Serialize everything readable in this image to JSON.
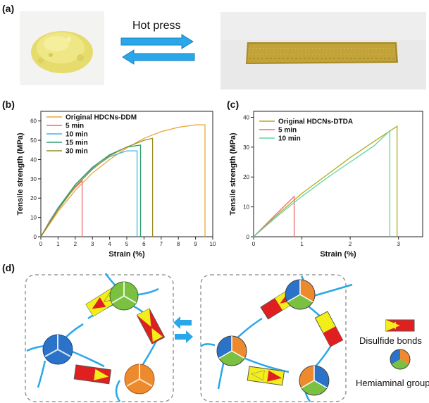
{
  "panel_labels": {
    "a": "(a)",
    "b": "(b)",
    "c": "(c)",
    "d": "(d)"
  },
  "panel_a": {
    "process_label": "Hot press",
    "powder_color": "#e8e07a",
    "bar_color": "#b89a2e",
    "arrow_color": "#2aa7e8"
  },
  "panel_d": {
    "legend_disulfide": "Disulfide bonds",
    "legend_hemiaminal": "Hemiaminal group",
    "colors": {
      "green": "#7ac142",
      "blue": "#2a73c8",
      "orange": "#ee8a2e",
      "yellow": "#f2ee1a",
      "red": "#e02020",
      "link": "#2aa7e8",
      "box": "#888888"
    }
  },
  "chart_data": [
    {
      "type": "line",
      "panel": "b",
      "xlabel": "Strain (%)",
      "ylabel": "Tensile strength (MPa)",
      "xlim": [
        0,
        10
      ],
      "ylim": [
        0,
        65
      ],
      "xticks": [
        "0",
        "1",
        "2",
        "3",
        "4",
        "5",
        "6",
        "7",
        "8",
        "9",
        "10"
      ],
      "yticks": [
        "0",
        "10",
        "20",
        "30",
        "40",
        "50",
        "60"
      ],
      "legend_position": "top-left",
      "grid": false,
      "series": [
        {
          "name": "Original HDCNs-DDM",
          "color": "#e8a93c",
          "x": [
            0,
            1,
            2,
            3,
            4,
            5,
            6,
            7,
            8,
            9,
            9.55,
            9.55
          ],
          "y": [
            0,
            13,
            24,
            33,
            40,
            46,
            51,
            54.5,
            56.7,
            58,
            58,
            0
          ]
        },
        {
          "name": "5 min",
          "color": "#f06a6a",
          "x": [
            0,
            0.5,
            1,
            1.5,
            2,
            2.4,
            2.4
          ],
          "y": [
            0,
            8,
            15,
            20.5,
            25.5,
            29,
            0
          ]
        },
        {
          "name": "10 min",
          "color": "#3fb6e8",
          "x": [
            0,
            1,
            2,
            3,
            4,
            5,
            5.6,
            5.6
          ],
          "y": [
            0,
            15,
            27,
            35.5,
            41.5,
            44.5,
            44.5,
            0
          ]
        },
        {
          "name": "15 min",
          "color": "#2e9e6e",
          "x": [
            0,
            1,
            2,
            3,
            4,
            5,
            5.8,
            5.8
          ],
          "y": [
            0,
            14.5,
            27,
            36,
            42.5,
            46.5,
            47.5,
            0
          ]
        },
        {
          "name": "30 min",
          "color": "#9b8a1e",
          "x": [
            0,
            1,
            2,
            3,
            4,
            5,
            6,
            6.5,
            6.5
          ],
          "y": [
            0,
            14,
            26,
            35,
            42,
            46.5,
            50,
            51,
            0
          ]
        }
      ]
    },
    {
      "type": "line",
      "panel": "c",
      "xlabel": "Strain (%)",
      "ylabel": "Tensile strength (MPa)",
      "xlim": [
        0,
        3.5
      ],
      "ylim": [
        0,
        42
      ],
      "xticks": [
        "0",
        "1",
        "2",
        "3"
      ],
      "yticks": [
        "0",
        "10",
        "20",
        "30",
        "40"
      ],
      "legend_position": "top-left",
      "grid": false,
      "series": [
        {
          "name": "Original HDCNs-DTDA",
          "color": "#b3aa1e",
          "x": [
            0,
            0.5,
            1,
            1.5,
            2,
            2.5,
            2.97,
            2.97
          ],
          "y": [
            0,
            7.5,
            14.5,
            20.5,
            26.5,
            32,
            37,
            0
          ]
        },
        {
          "name": "5 min",
          "color": "#f06a6a",
          "x": [
            0,
            0.4,
            0.84,
            0.84
          ],
          "y": [
            0,
            6.5,
            13.5,
            0
          ]
        },
        {
          "name": "10 min",
          "color": "#5ed6a4",
          "x": [
            0,
            0.5,
            1,
            1.5,
            2,
            2.5,
            2.82,
            2.82
          ],
          "y": [
            0,
            7,
            13.5,
            19.5,
            25,
            30.5,
            35.5,
            0
          ]
        }
      ]
    }
  ]
}
